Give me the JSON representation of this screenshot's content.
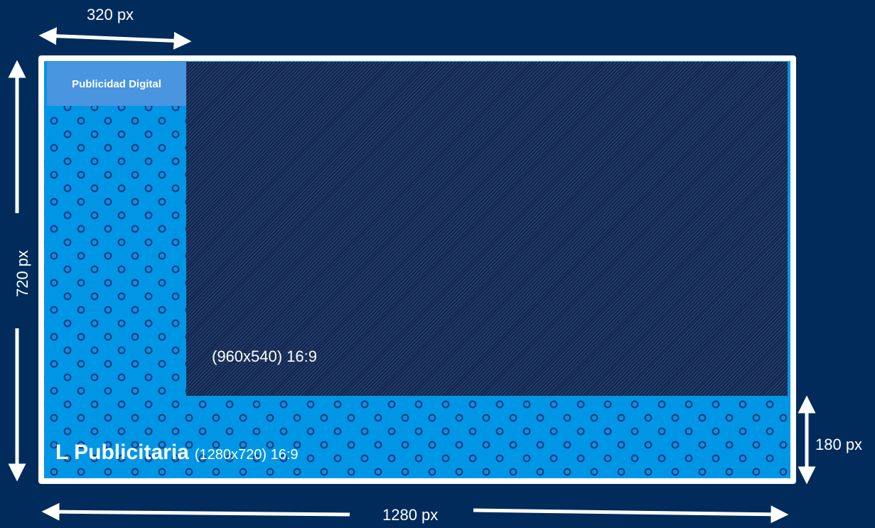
{
  "dimensions": {
    "top_width": "320 px",
    "height": "720 px",
    "bottom_width": "1280 px",
    "side_height": "180 px"
  },
  "header_label": "Publicidad Digital",
  "content_area": {
    "label": "(960x540) 16:9"
  },
  "footer": {
    "title": "L Publicitaria",
    "dims": "(1280x720) 16:9"
  },
  "colors": {
    "background": "#002b5b",
    "frame_border": "#ffffff",
    "pattern_fill": "#0096e6",
    "header_fill": "#4a95e0",
    "content_fill": "#1a2f5c"
  },
  "icons": {
    "pattern": "c-letter-pattern",
    "arrows": "double-headed-arrow"
  }
}
